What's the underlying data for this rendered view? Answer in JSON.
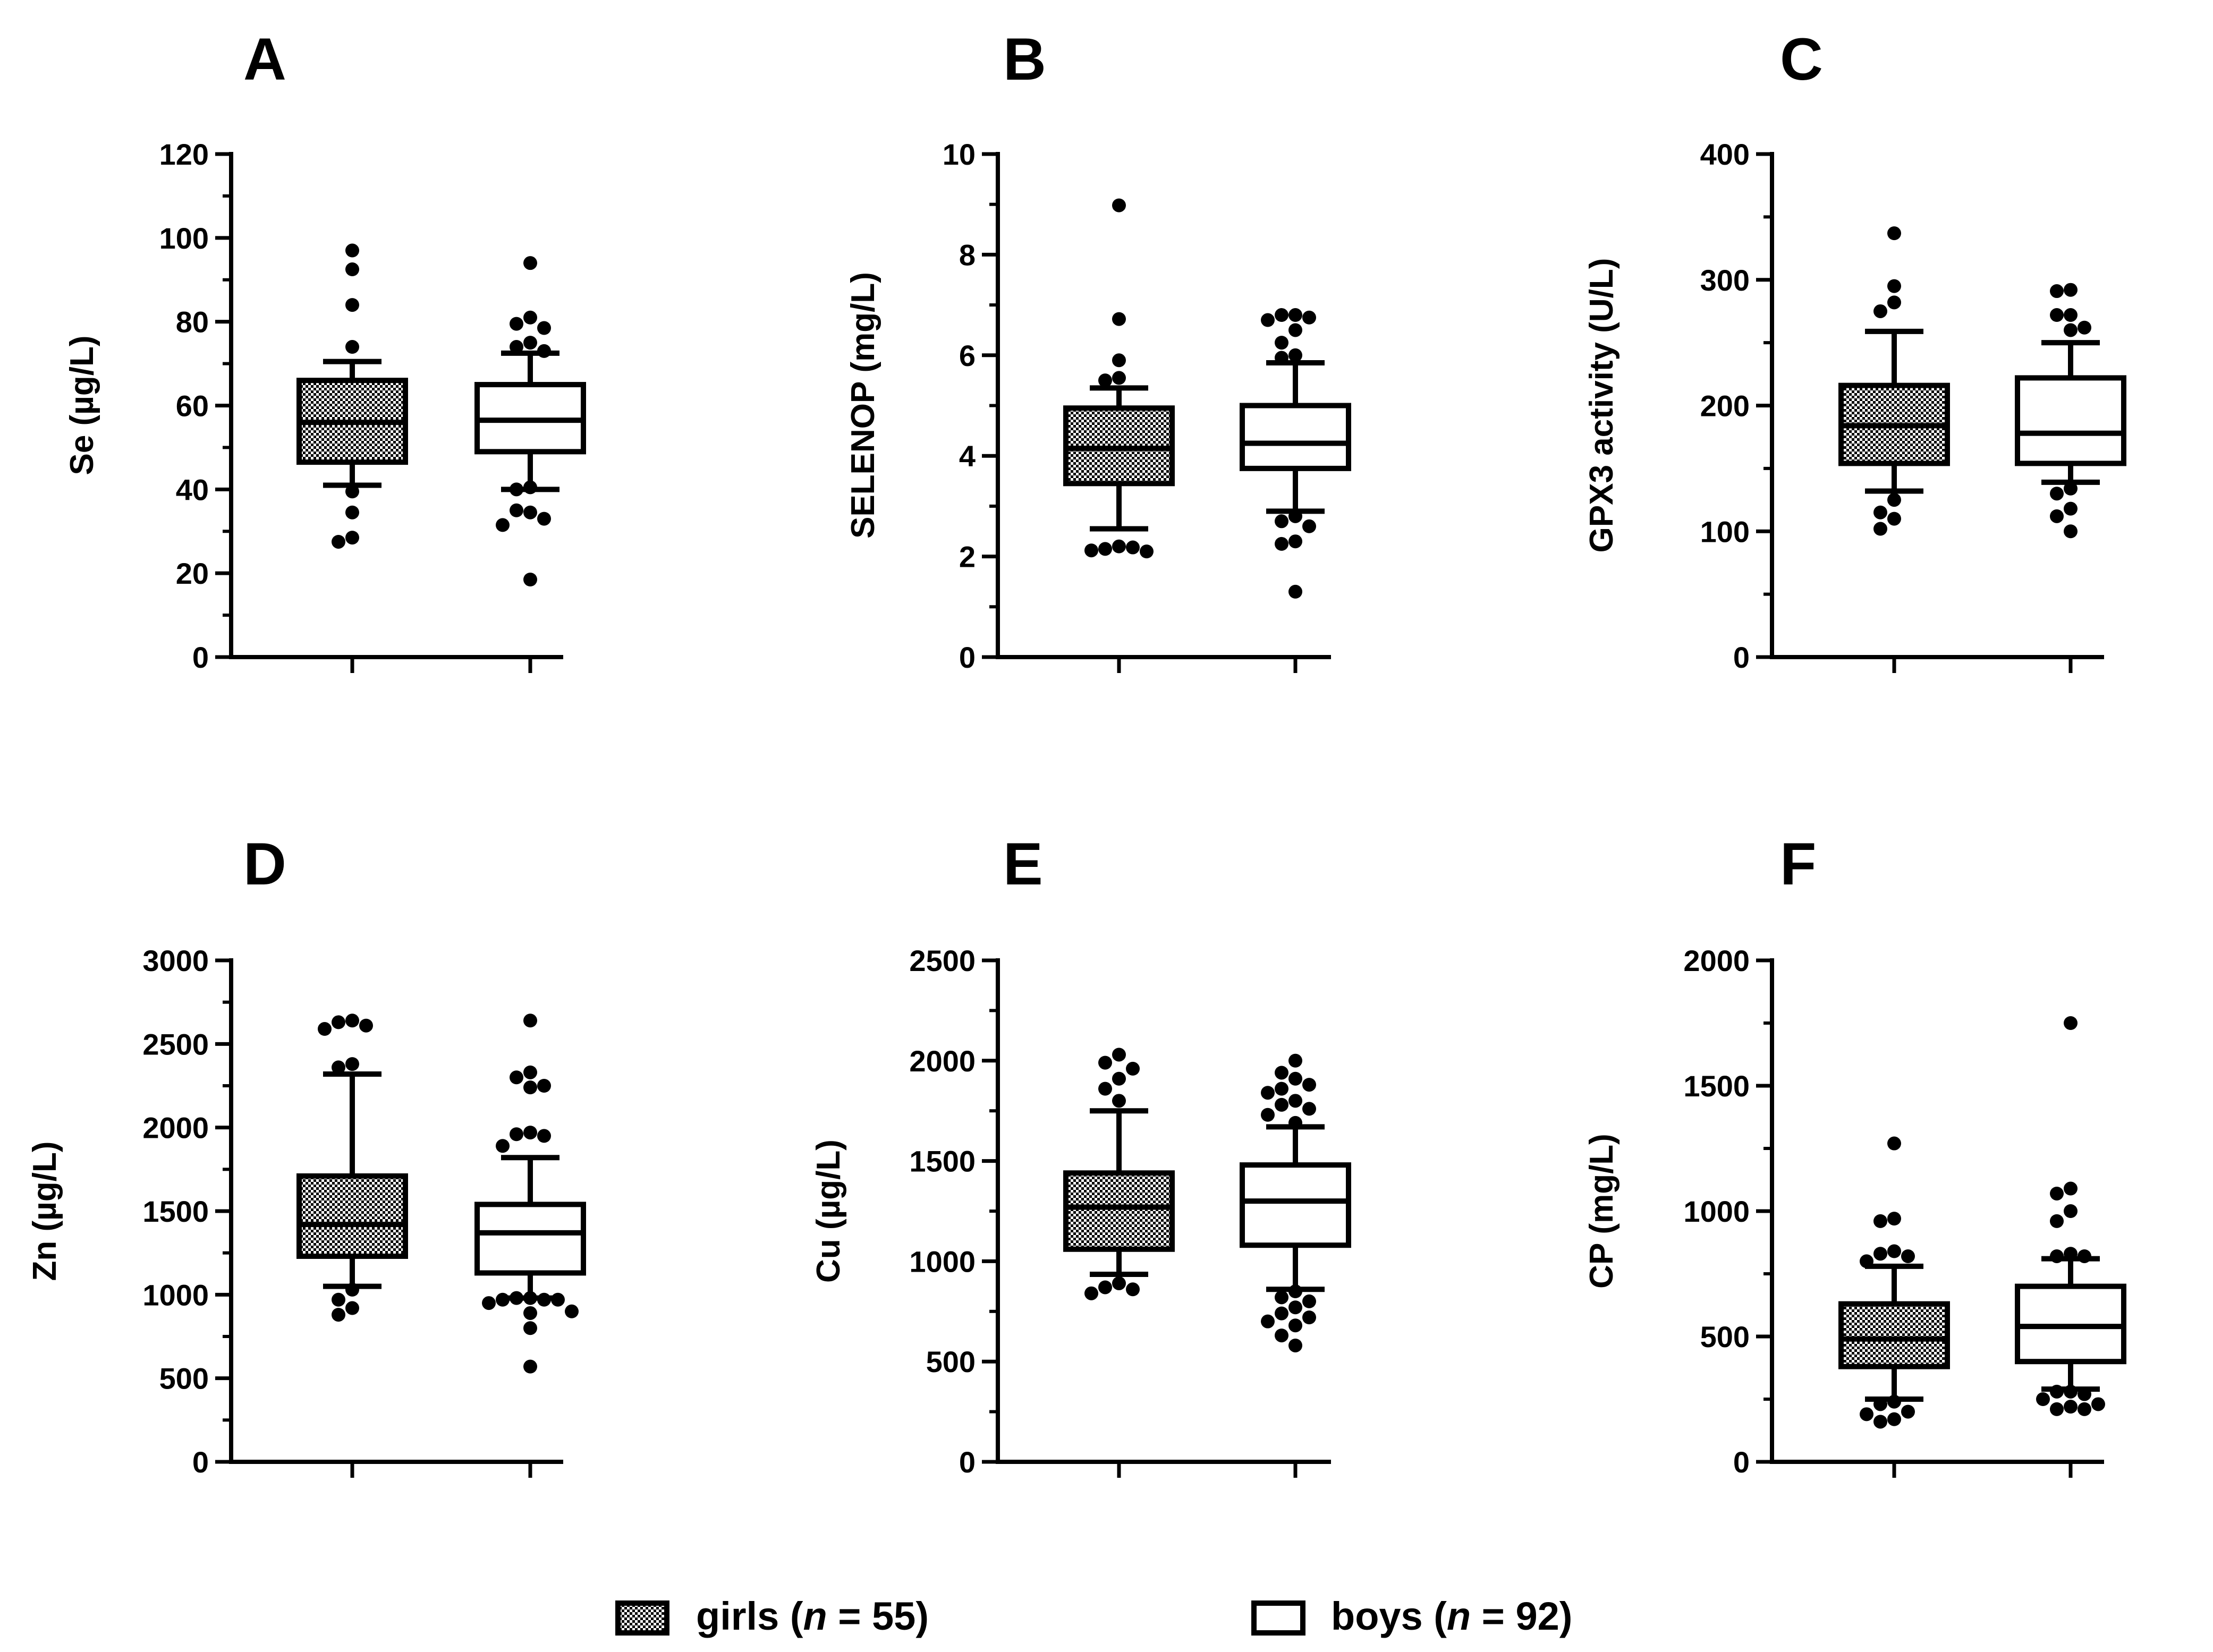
{
  "legend": {
    "girls": {
      "prefix": "girls (",
      "n_symbol": "n",
      "suffix": " = 55)"
    },
    "boys": {
      "prefix": "boys (",
      "n_symbol": "n",
      "suffix": " = 92)"
    }
  },
  "chart_data": [
    {
      "type": "box",
      "letter": "A",
      "ylabel": "Se (µg/L)",
      "ylim": [
        0,
        120
      ],
      "yticks": [
        0,
        20,
        40,
        60,
        80,
        100,
        120
      ],
      "minor_step": 10,
      "groups": [
        {
          "name": "girls",
          "q1": 46.5,
          "median": 56,
          "q3": 66,
          "whisker_low": 41,
          "whisker_high": 70.5,
          "outliers": [
            97,
            92.5,
            84,
            74,
            39.5,
            34.5,
            28.5,
            27.5
          ]
        },
        {
          "name": "boys",
          "q1": 49,
          "median": 56.5,
          "q3": 65,
          "whisker_low": 40,
          "whisker_high": 72.5,
          "outliers": [
            94,
            81,
            79.5,
            78.5,
            75,
            74,
            73,
            40.5,
            40,
            34.5,
            35,
            33,
            31.5,
            18.5
          ]
        }
      ]
    },
    {
      "type": "box",
      "letter": "B",
      "ylabel": "SELENOP (mg/L)",
      "ylim": [
        0,
        10
      ],
      "yticks": [
        0,
        2,
        4,
        6,
        8,
        10
      ],
      "minor_step": 1,
      "groups": [
        {
          "name": "girls",
          "q1": 3.45,
          "median": 4.15,
          "q3": 4.95,
          "whisker_low": 2.55,
          "whisker_high": 5.35,
          "outliers": [
            8.98,
            6.72,
            5.9,
            5.55,
            5.5,
            2.2,
            2.15,
            2.18,
            2.12,
            2.1
          ]
        },
        {
          "name": "boys",
          "q1": 3.75,
          "median": 4.25,
          "q3": 5.0,
          "whisker_low": 2.9,
          "whisker_high": 5.85,
          "outliers": [
            6.8,
            6.8,
            6.75,
            6.7,
            6.5,
            6.25,
            6.0,
            5.95,
            2.8,
            2.7,
            2.6,
            2.3,
            2.25,
            1.3
          ]
        }
      ]
    },
    {
      "type": "box",
      "letter": "C",
      "ylabel": "GPX3 activity (U/L)",
      "ylim": [
        0,
        400
      ],
      "yticks": [
        0,
        100,
        200,
        300,
        400
      ],
      "minor_step": 50,
      "groups": [
        {
          "name": "girls",
          "q1": 154,
          "median": 184,
          "q3": 216,
          "whisker_low": 132,
          "whisker_high": 259,
          "outliers": [
            337,
            295,
            282,
            275,
            125,
            115,
            110,
            102
          ]
        },
        {
          "name": "boys",
          "q1": 154,
          "median": 178,
          "q3": 222,
          "whisker_low": 139,
          "whisker_high": 250,
          "outliers": [
            292,
            291,
            272,
            272,
            262,
            260,
            134,
            130,
            118,
            112,
            100
          ]
        }
      ]
    },
    {
      "type": "box",
      "letter": "D",
      "ylabel": "Zn (µg/L)",
      "ylim": [
        0,
        3000
      ],
      "yticks": [
        0,
        500,
        1000,
        1500,
        2000,
        2500,
        3000
      ],
      "minor_step": 250,
      "groups": [
        {
          "name": "girls",
          "q1": 1230,
          "median": 1420,
          "q3": 1710,
          "whisker_low": 1050,
          "whisker_high": 2320,
          "outliers": [
            2640,
            2630,
            2610,
            2590,
            2380,
            2360,
            1030,
            970,
            920,
            880
          ]
        },
        {
          "name": "boys",
          "q1": 1130,
          "median": 1370,
          "q3": 1540,
          "whisker_low": 980,
          "whisker_high": 1820,
          "outliers": [
            2640,
            2330,
            2300,
            2250,
            2240,
            1970,
            1960,
            1950,
            1890,
            980,
            980,
            970,
            970,
            970,
            950,
            900,
            890,
            800,
            570
          ]
        }
      ]
    },
    {
      "type": "box",
      "letter": "E",
      "ylabel": "Cu (µg/L)",
      "ylim": [
        0,
        2500
      ],
      "yticks": [
        0,
        500,
        1000,
        1500,
        2000,
        2500
      ],
      "minor_step": 250,
      "groups": [
        {
          "name": "girls",
          "q1": 1060,
          "median": 1270,
          "q3": 1440,
          "whisker_low": 935,
          "whisker_high": 1750,
          "outliers": [
            2030,
            1990,
            1960,
            1910,
            1860,
            1800,
            890,
            870,
            860,
            840
          ]
        },
        {
          "name": "boys",
          "q1": 1080,
          "median": 1300,
          "q3": 1480,
          "whisker_low": 860,
          "whisker_high": 1670,
          "outliers": [
            2000,
            1940,
            1910,
            1880,
            1860,
            1840,
            1800,
            1780,
            1760,
            1730,
            1690,
            850,
            820,
            800,
            770,
            740,
            720,
            700,
            680,
            630,
            580
          ]
        }
      ]
    },
    {
      "type": "box",
      "letter": "F",
      "ylabel": "CP (mg/L)",
      "ylim": [
        0,
        2000
      ],
      "yticks": [
        0,
        500,
        1000,
        1500,
        2000
      ],
      "minor_step": 250,
      "groups": [
        {
          "name": "girls",
          "q1": 380,
          "median": 490,
          "q3": 630,
          "whisker_low": 250,
          "whisker_high": 780,
          "outliers": [
            1270,
            970,
            960,
            840,
            830,
            820,
            800,
            240,
            230,
            200,
            190,
            170,
            160
          ]
        },
        {
          "name": "boys",
          "q1": 400,
          "median": 540,
          "q3": 700,
          "whisker_low": 290,
          "whisker_high": 810,
          "outliers": [
            1750,
            1090,
            1070,
            1000,
            960,
            830,
            820,
            820,
            280,
            280,
            270,
            250,
            230,
            220,
            210,
            210
          ]
        }
      ]
    }
  ]
}
